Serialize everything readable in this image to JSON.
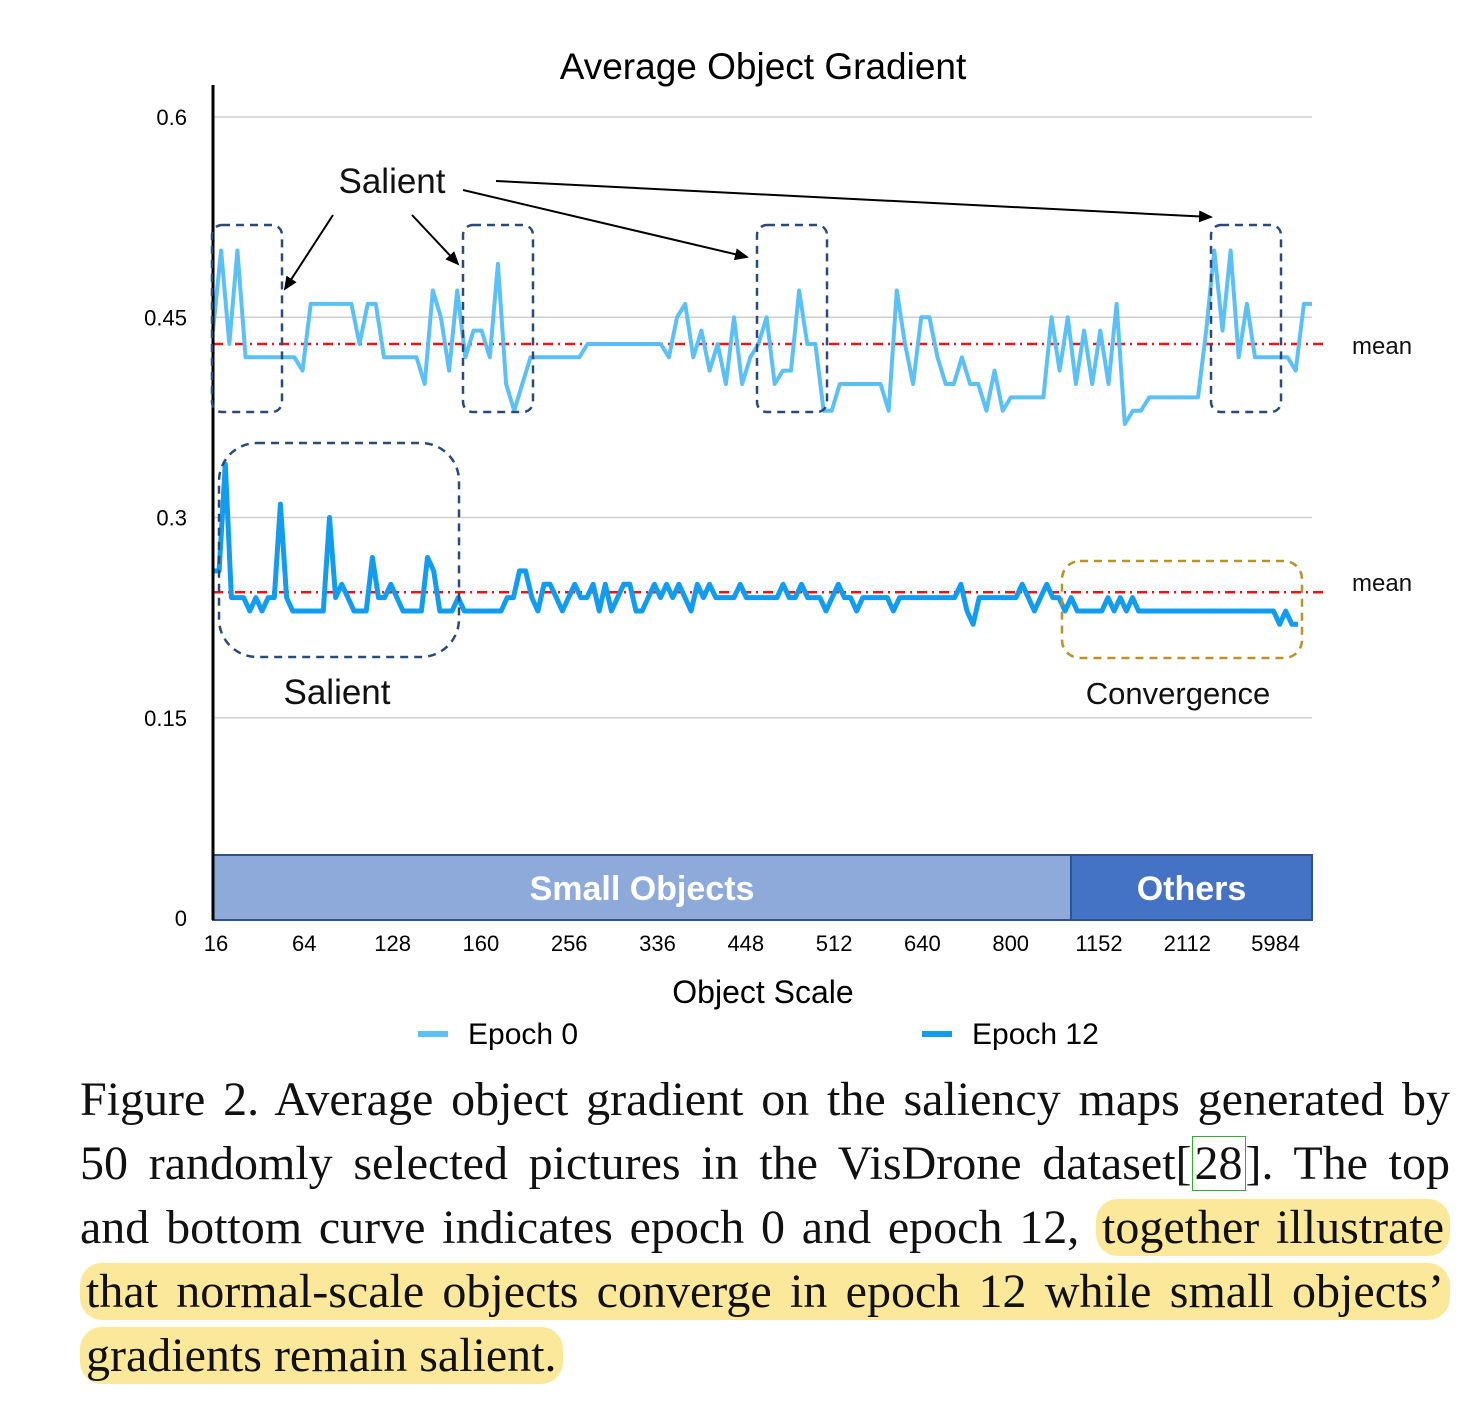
{
  "chart_data": {
    "type": "line",
    "title": "Average Object Gradient",
    "xlabel": "Object Scale",
    "ylabel": "",
    "ylim": [
      0,
      0.6
    ],
    "yticks": [
      "0",
      "0.15",
      "0.3",
      "0.45",
      "0.6"
    ],
    "xticks": [
      "16",
      "64",
      "128",
      "160",
      "256",
      "336",
      "448",
      "512",
      "640",
      "800",
      "1152",
      "2112",
      "5984"
    ],
    "grid": true,
    "legend": "bottom",
    "series": [
      {
        "name": "Epoch 0",
        "color": "#5bc0f5",
        "mean": 0.43,
        "values": [
          0.44,
          0.5,
          0.43,
          0.5,
          0.42,
          0.42,
          0.42,
          0.42,
          0.42,
          0.42,
          0.42,
          0.41,
          0.46,
          0.46,
          0.46,
          0.46,
          0.46,
          0.46,
          0.43,
          0.46,
          0.46,
          0.42,
          0.42,
          0.42,
          0.42,
          0.42,
          0.4,
          0.47,
          0.45,
          0.41,
          0.47,
          0.42,
          0.44,
          0.44,
          0.42,
          0.49,
          0.4,
          0.38,
          0.4,
          0.42,
          0.42,
          0.42,
          0.42,
          0.42,
          0.42,
          0.42,
          0.43,
          0.43,
          0.43,
          0.43,
          0.43,
          0.43,
          0.43,
          0.43,
          0.43,
          0.43,
          0.42,
          0.45,
          0.46,
          0.42,
          0.44,
          0.41,
          0.43,
          0.4,
          0.45,
          0.4,
          0.42,
          0.43,
          0.45,
          0.4,
          0.41,
          0.41,
          0.47,
          0.43,
          0.43,
          0.38,
          0.38,
          0.4,
          0.4,
          0.4,
          0.4,
          0.4,
          0.4,
          0.38,
          0.47,
          0.43,
          0.4,
          0.45,
          0.45,
          0.42,
          0.4,
          0.4,
          0.42,
          0.4,
          0.4,
          0.38,
          0.41,
          0.38,
          0.39,
          0.39,
          0.39,
          0.39,
          0.39,
          0.45,
          0.41,
          0.45,
          0.4,
          0.44,
          0.4,
          0.44,
          0.4,
          0.46,
          0.37,
          0.38,
          0.38,
          0.39,
          0.39,
          0.39,
          0.39,
          0.39,
          0.39,
          0.39,
          0.44,
          0.5,
          0.44,
          0.5,
          0.42,
          0.46,
          0.42,
          0.42,
          0.42,
          0.42,
          0.42,
          0.41,
          0.46,
          0.46
        ]
      },
      {
        "name": "Epoch 12",
        "color": "#129cf0",
        "mean": 0.244,
        "values": [
          0.26,
          0.26,
          0.34,
          0.24,
          0.24,
          0.24,
          0.23,
          0.24,
          0.23,
          0.24,
          0.24,
          0.31,
          0.24,
          0.23,
          0.23,
          0.23,
          0.23,
          0.23,
          0.23,
          0.3,
          0.24,
          0.25,
          0.24,
          0.23,
          0.23,
          0.23,
          0.27,
          0.24,
          0.24,
          0.25,
          0.24,
          0.23,
          0.23,
          0.23,
          0.23,
          0.27,
          0.26,
          0.23,
          0.23,
          0.23,
          0.24,
          0.23,
          0.23,
          0.23,
          0.23,
          0.23,
          0.23,
          0.23,
          0.24,
          0.24,
          0.26,
          0.26,
          0.24,
          0.23,
          0.25,
          0.25,
          0.24,
          0.23,
          0.24,
          0.25,
          0.24,
          0.24,
          0.25,
          0.23,
          0.25,
          0.23,
          0.24,
          0.25,
          0.25,
          0.23,
          0.23,
          0.24,
          0.25,
          0.24,
          0.25,
          0.24,
          0.25,
          0.24,
          0.23,
          0.25,
          0.24,
          0.25,
          0.24,
          0.24,
          0.24,
          0.24,
          0.25,
          0.24,
          0.24,
          0.24,
          0.24,
          0.24,
          0.24,
          0.25,
          0.24,
          0.24,
          0.25,
          0.24,
          0.24,
          0.24,
          0.23,
          0.24,
          0.25,
          0.24,
          0.24,
          0.23,
          0.24,
          0.24,
          0.24,
          0.24,
          0.24,
          0.23,
          0.24,
          0.24,
          0.24,
          0.24,
          0.24,
          0.24,
          0.24,
          0.24,
          0.24,
          0.24,
          0.25,
          0.23,
          0.22,
          0.24,
          0.24,
          0.24,
          0.24,
          0.24,
          0.24,
          0.24,
          0.25,
          0.24,
          0.23,
          0.24,
          0.25,
          0.24,
          0.24,
          0.23,
          0.24,
          0.23,
          0.23,
          0.23,
          0.23,
          0.23,
          0.24,
          0.23,
          0.24,
          0.23,
          0.24,
          0.23,
          0.23,
          0.23,
          0.23,
          0.23,
          0.23,
          0.23,
          0.23,
          0.23,
          0.23,
          0.23,
          0.23,
          0.23,
          0.23,
          0.23,
          0.23,
          0.23,
          0.23,
          0.23,
          0.23,
          0.23,
          0.23,
          0.23,
          0.22,
          0.23,
          0.22,
          0.22
        ]
      }
    ],
    "mean_label": "mean",
    "bands": [
      {
        "label": "Small Objects",
        "color": "#8eaadb",
        "from": 16,
        "to": 800
      },
      {
        "label": "Others",
        "color": "#4472c4",
        "from": 1152,
        "to": 5984
      }
    ],
    "annotations": {
      "top_salient": "Salient",
      "bottom_salient": "Salient",
      "convergence": "Convergence"
    }
  },
  "caption": {
    "part1": "Figure 2. Average object gradient on the saliency maps generated by 50 randomly selected pictures in the VisDrone dataset[",
    "ref": "28",
    "part2": "]. The top and bottom curve indicates epoch 0 and epoch 12, ",
    "highlight": "together illustrate that normal-scale objects converge in epoch 12 while small objects’ gradients remain salient."
  }
}
